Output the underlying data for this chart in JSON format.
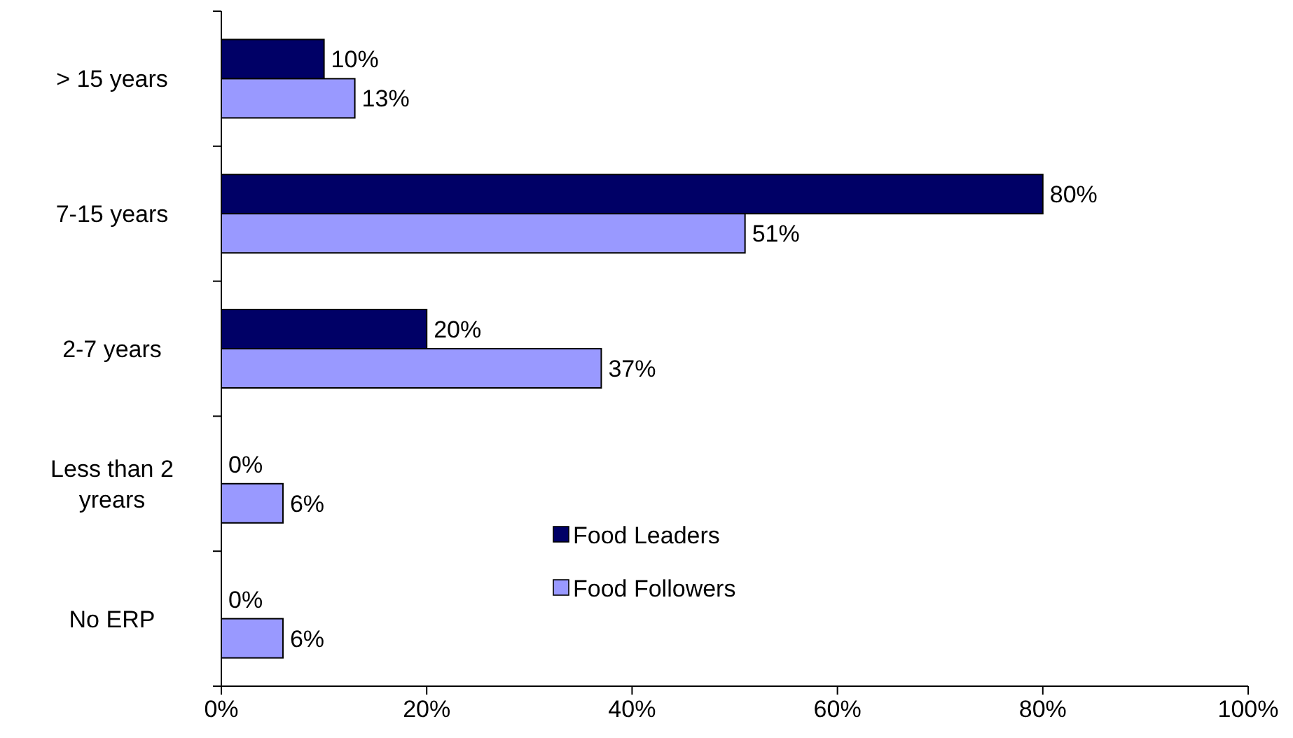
{
  "chart_data": {
    "type": "bar",
    "orientation": "horizontal",
    "categories": [
      "> 15 years",
      "7-15 years",
      "2-7 years",
      "Less than 2 yrears",
      "No ERP"
    ],
    "series": [
      {
        "name": "Food Leaders",
        "color": "#000066",
        "values": [
          10,
          80,
          20,
          0,
          0
        ],
        "value_labels": [
          "10%",
          "80%",
          "20%",
          "0%",
          "0%"
        ]
      },
      {
        "name": "Food Followers",
        "color": "#9999ff",
        "values": [
          13,
          51,
          37,
          6,
          6
        ],
        "value_labels": [
          "13%",
          "51%",
          "37%",
          "6%",
          "6%"
        ]
      }
    ],
    "xlim": [
      0,
      100
    ],
    "xticks": [
      {
        "value": 0,
        "label": "0%"
      },
      {
        "value": 20,
        "label": "20%"
      },
      {
        "value": 40,
        "label": "40%"
      },
      {
        "value": 60,
        "label": "60%"
      },
      {
        "value": 80,
        "label": "80%"
      },
      {
        "value": 100,
        "label": "100%"
      }
    ],
    "grid": false,
    "legend": "bottom"
  }
}
